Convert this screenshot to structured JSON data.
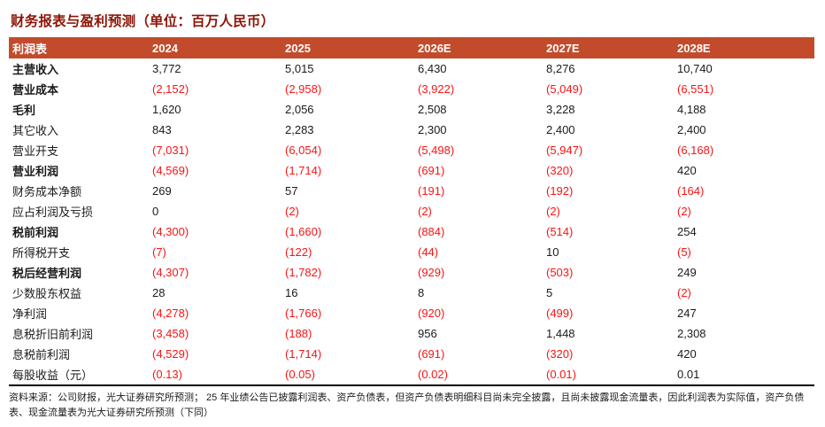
{
  "title": "财务报表与盈利预测（单位：百万人民币）",
  "colors": {
    "title_color": "#8B1507",
    "header_bg": "#C24B2C",
    "header_text": "#FFFFFF",
    "negative": "#F81414",
    "text": "#1A1A1A"
  },
  "table": {
    "columns": [
      "利润表",
      "2024",
      "2025",
      "2026E",
      "2027E",
      "2028E"
    ],
    "rows": [
      {
        "label": "主营收入",
        "bold": true,
        "values": [
          "3,772",
          "5,015",
          "6,430",
          "8,276",
          "10,740"
        ]
      },
      {
        "label": "营业成本",
        "bold": true,
        "values": [
          "(2,152)",
          "(2,958)",
          "(3,922)",
          "(5,049)",
          "(6,551)"
        ]
      },
      {
        "label": "毛利",
        "bold": true,
        "values": [
          "1,620",
          "2,056",
          "2,508",
          "3,228",
          "4,188"
        ]
      },
      {
        "label": "其它收入",
        "bold": false,
        "values": [
          "843",
          "2,283",
          "2,300",
          "2,400",
          "2,400"
        ]
      },
      {
        "label": "营业开支",
        "bold": false,
        "values": [
          "(7,031)",
          "(6,054)",
          "(5,498)",
          "(5,947)",
          "(6,168)"
        ]
      },
      {
        "label": "营业利润",
        "bold": true,
        "values": [
          "(4,569)",
          "(1,714)",
          "(691)",
          "(320)",
          "420"
        ]
      },
      {
        "label": "财务成本净额",
        "bold": false,
        "values": [
          "269",
          "57",
          "(191)",
          "(192)",
          "(164)"
        ]
      },
      {
        "label": "应占利润及亏损",
        "bold": false,
        "values": [
          "0",
          "(2)",
          "(2)",
          "(2)",
          "(2)"
        ]
      },
      {
        "label": "税前利润",
        "bold": true,
        "values": [
          "(4,300)",
          "(1,660)",
          "(884)",
          "(514)",
          "254"
        ]
      },
      {
        "label": "所得税开支",
        "bold": false,
        "values": [
          "(7)",
          "(122)",
          "(44)",
          "10",
          "(5)"
        ]
      },
      {
        "label": "税后经营利润",
        "bold": true,
        "values": [
          "(4,307)",
          "(1,782)",
          "(929)",
          "(503)",
          "249"
        ]
      },
      {
        "label": "少数股东权益",
        "bold": false,
        "values": [
          "28",
          "16",
          "8",
          "5",
          "(2)"
        ]
      },
      {
        "label": "净利润",
        "bold": false,
        "values": [
          "(4,278)",
          "(1,766)",
          "(920)",
          "(499)",
          "247"
        ]
      },
      {
        "label": "息税折旧前利润",
        "bold": false,
        "values": [
          "(3,458)",
          "(188)",
          "956",
          "1,448",
          "2,308"
        ]
      },
      {
        "label": "息税前利润",
        "bold": false,
        "values": [
          "(4,529)",
          "(1,714)",
          "(691)",
          "(320)",
          "420"
        ]
      },
      {
        "label": "每股收益（元）",
        "bold": false,
        "values": [
          "(0.13)",
          "(0.05)",
          "(0.02)",
          "(0.01)",
          "0.01"
        ]
      }
    ]
  },
  "footnote": "资料来源：公司财报，光大证券研究所预测； 25 年业绩公告已披露利润表、资产负债表，但资产负债表明细科目尚未完全披露，且尚未披露现金流量表，因此利润表为实际值，资产负债表、现金流量表为光大证券研究所预测（下同）"
}
